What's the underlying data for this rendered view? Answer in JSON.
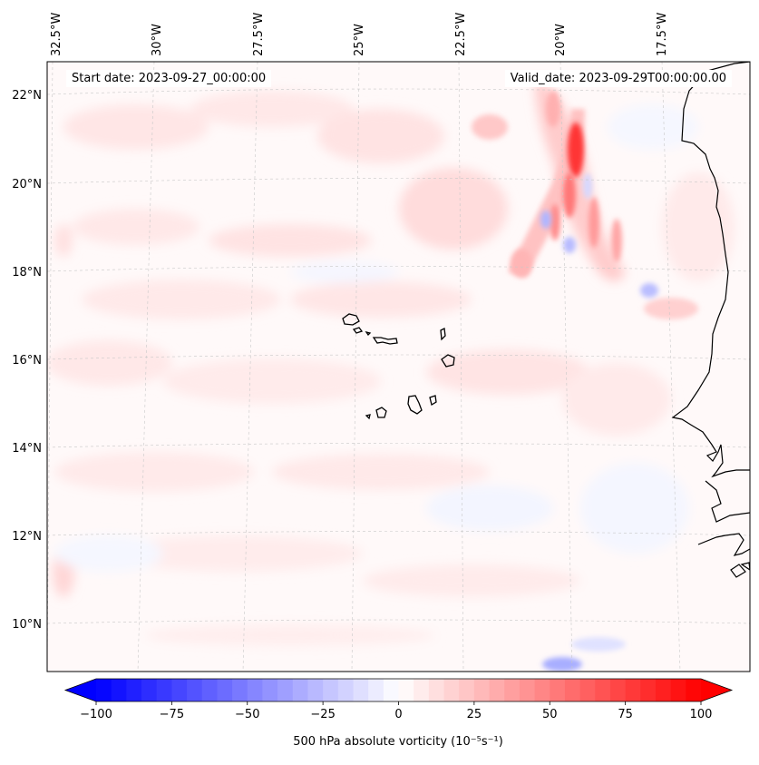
{
  "map": {
    "start_date": "Start date: 2023-09-27_00:00:00",
    "valid_date": "Valid_date: 2023-09-29T00:00:00.00",
    "lon_labels": [
      "32.5°W",
      "30°W",
      "27.5°W",
      "25°W",
      "22.5°W",
      "20°W",
      "17.5°W"
    ],
    "lat_labels": [
      "22°N",
      "20°N",
      "18°N",
      "16°N",
      "14°N",
      "12°N",
      "10°N"
    ],
    "field": "500 hPa absolute vorticity",
    "features": [
      "cape-verde-islands",
      "west-africa-coastline"
    ]
  },
  "colorbar": {
    "label": "500 hPa absolute vorticity (10⁻⁵s⁻¹)",
    "ticks": [
      "−100",
      "−75",
      "−50",
      "−25",
      "0",
      "25",
      "50",
      "75",
      "100"
    ],
    "min": -100,
    "max": 100,
    "step": 5,
    "colormap": "bwr",
    "low_color": "#0000ff",
    "mid_color": "#ffffff",
    "high_color": "#ff0000"
  }
}
